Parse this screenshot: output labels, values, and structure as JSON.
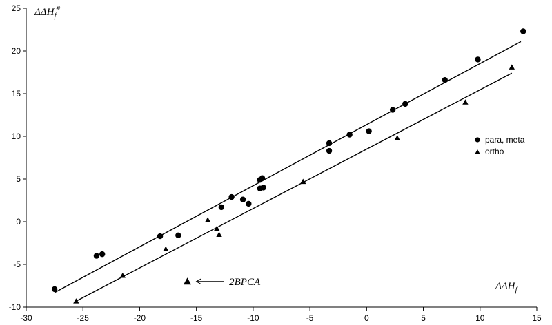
{
  "chart_data": {
    "type": "scatter",
    "xlabel": "ΔΔH",
    "xlabel_sub": "f",
    "ylabel": "ΔΔH",
    "ylabel_sub": "f",
    "ylabel_sup": "#",
    "xlim": [
      -30,
      15
    ],
    "ylim": [
      -10,
      25
    ],
    "x_ticks": [
      -30,
      -25,
      -20,
      -15,
      -10,
      -5,
      0,
      5,
      10,
      15
    ],
    "y_ticks": [
      -10,
      -5,
      0,
      5,
      10,
      15,
      20,
      25
    ],
    "grid": false,
    "legend_position": "right",
    "series": [
      {
        "name": "para, meta",
        "marker": "circle",
        "points": [
          [
            -27.5,
            -7.9
          ],
          [
            -23.8,
            -4.0
          ],
          [
            -23.3,
            -3.8
          ],
          [
            -18.2,
            -1.7
          ],
          [
            -16.6,
            -1.6
          ],
          [
            -12.8,
            1.7
          ],
          [
            -11.9,
            2.9
          ],
          [
            -10.9,
            2.6
          ],
          [
            -10.4,
            2.1
          ],
          [
            -9.4,
            3.9
          ],
          [
            -9.4,
            4.9
          ],
          [
            -9.2,
            5.1
          ],
          [
            -9.1,
            4.0
          ],
          [
            -3.3,
            9.2
          ],
          [
            -3.3,
            8.3
          ],
          [
            -1.5,
            10.2
          ],
          [
            0.2,
            10.6
          ],
          [
            2.3,
            13.1
          ],
          [
            3.4,
            13.8
          ],
          [
            6.9,
            16.6
          ],
          [
            9.8,
            19.0
          ],
          [
            13.8,
            22.3
          ]
        ],
        "fit": {
          "x1": -27.5,
          "y1": -8.3,
          "x2": 13.6,
          "y2": 21.1
        }
      },
      {
        "name": "ortho",
        "marker": "triangle",
        "points": [
          [
            -25.6,
            -9.3
          ],
          [
            -21.5,
            -6.3
          ],
          [
            -17.7,
            -3.2
          ],
          [
            -14.0,
            0.2
          ],
          [
            -13.2,
            -0.8
          ],
          [
            -13.0,
            -1.5
          ],
          [
            -5.6,
            4.7
          ],
          [
            2.7,
            9.8
          ],
          [
            8.7,
            14.0
          ],
          [
            12.8,
            18.1
          ]
        ],
        "fit": {
          "x1": -25.6,
          "y1": -9.3,
          "x2": 12.8,
          "y2": 17.4
        }
      }
    ],
    "annotations": [
      {
        "text": "2BPCA",
        "marker": "triangle",
        "x": -15.8,
        "y": -7.0,
        "arrow_to": [
          -15.0,
          -7.0
        ],
        "arrow_from": [
          -12.6,
          -7.0
        ]
      }
    ]
  }
}
